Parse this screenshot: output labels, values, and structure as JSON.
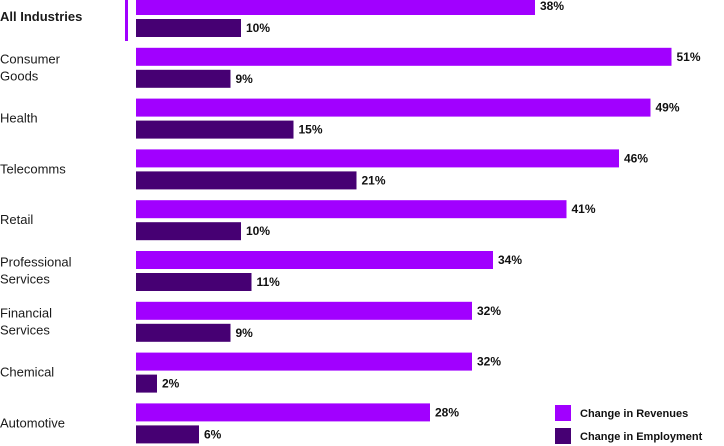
{
  "chart_data": {
    "type": "bar",
    "orientation": "horizontal",
    "categories": [
      "All Industries",
      "Consumer Goods",
      "Health",
      "Telecomms",
      "Retail",
      "Professional Services",
      "Financial Services",
      "Chemical",
      "Automotive"
    ],
    "category_lines": [
      [
        "All Industries"
      ],
      [
        "Consumer",
        "Goods"
      ],
      [
        "Health"
      ],
      [
        "Telecomms"
      ],
      [
        "Retail"
      ],
      [
        "Professional",
        "Services"
      ],
      [
        "Financial",
        "Services"
      ],
      [
        "Chemical"
      ],
      [
        "Automotive"
      ]
    ],
    "highlighted_category": "All Industries",
    "series": [
      {
        "name": "Change in Revenues",
        "color": "#a100ff",
        "values": [
          38,
          51,
          49,
          46,
          41,
          34,
          32,
          32,
          28
        ]
      },
      {
        "name": "Change in Employment",
        "color": "#460073",
        "values": [
          10,
          9,
          15,
          21,
          10,
          11,
          9,
          2,
          6
        ]
      }
    ],
    "value_suffix": "%",
    "legend_position": "bottom-right",
    "grid": false,
    "title": "",
    "xlabel": "",
    "ylabel": ""
  }
}
